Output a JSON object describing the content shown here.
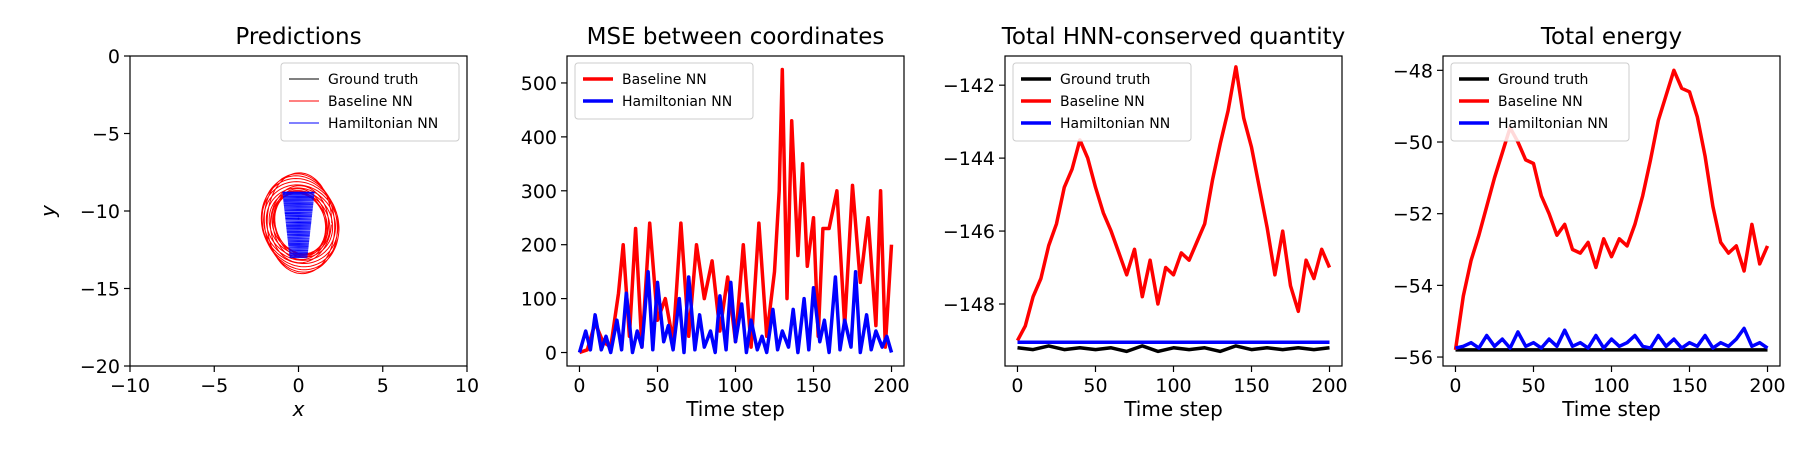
{
  "chart_data": [
    {
      "type": "line",
      "title": "Predictions",
      "xlabel": "x",
      "ylabel": "y",
      "xlim": [
        -10,
        10
      ],
      "ylim": [
        -20,
        0
      ],
      "xticks": [
        -10,
        -5,
        0,
        5,
        10
      ],
      "yticks": [
        0,
        -5,
        -10,
        -15,
        -20
      ],
      "legend": "top-right",
      "grid": false,
      "series": [
        {
          "name": "Ground truth",
          "color": "#000000",
          "style": "thin",
          "kind": "point",
          "x": [
            0.0
          ],
          "y": [
            -10.5
          ]
        },
        {
          "name": "Baseline NN",
          "color": "#ff0000",
          "style": "thin",
          "kind": "orbit",
          "cx": 0.1,
          "cy": -10.8,
          "rx": 2.2,
          "ry": 3.2,
          "xrange": [
            -3.0,
            2.8
          ],
          "yrange": [
            -14.8,
            -7.2
          ]
        },
        {
          "name": "Hamiltonian NN",
          "color": "#0000ff",
          "style": "thin",
          "kind": "band",
          "cx": 0.0,
          "cy": -10.7,
          "xrange": [
            -0.95,
            0.95
          ],
          "yrange": [
            -13.0,
            -8.8
          ]
        }
      ]
    },
    {
      "type": "line",
      "title": "MSE between coordinates",
      "xlabel": "Time step",
      "ylabel": "",
      "xlim": [
        -8,
        208
      ],
      "ylim": [
        -25,
        550
      ],
      "xticks": [
        0,
        50,
        100,
        150,
        200
      ],
      "yticks": [
        0,
        100,
        200,
        300,
        400,
        500
      ],
      "legend": "top-left",
      "grid": false,
      "series": [
        {
          "name": "Baseline NN",
          "color": "#ff0000",
          "x": [
            0,
            5,
            10,
            15,
            20,
            25,
            28,
            32,
            36,
            40,
            45,
            50,
            55,
            60,
            65,
            70,
            75,
            80,
            85,
            90,
            95,
            100,
            105,
            110,
            115,
            120,
            125,
            128,
            130,
            133,
            136,
            140,
            143,
            146,
            150,
            153,
            156,
            160,
            165,
            170,
            175,
            180,
            185,
            190,
            193,
            196,
            200
          ],
          "y": [
            0,
            5,
            55,
            20,
            10,
            110,
            200,
            30,
            230,
            10,
            240,
            60,
            100,
            20,
            240,
            30,
            200,
            100,
            170,
            40,
            140,
            20,
            200,
            10,
            240,
            30,
            150,
            300,
            525,
            100,
            430,
            180,
            350,
            160,
            250,
            30,
            230,
            230,
            300,
            50,
            310,
            130,
            250,
            50,
            300,
            10,
            200
          ]
        },
        {
          "name": "Hamiltonian NN",
          "color": "#0000ff",
          "x": [
            0,
            4,
            7,
            10,
            14,
            17,
            20,
            24,
            27,
            30,
            34,
            37,
            40,
            44,
            47,
            50,
            54,
            57,
            60,
            64,
            67,
            70,
            74,
            77,
            80,
            84,
            87,
            90,
            94,
            97,
            100,
            104,
            107,
            110,
            114,
            117,
            120,
            124,
            127,
            130,
            134,
            137,
            140,
            144,
            147,
            150,
            154,
            157,
            160,
            164,
            167,
            170,
            174,
            177,
            180,
            184,
            187,
            190,
            194,
            197,
            200
          ],
          "y": [
            0,
            40,
            5,
            70,
            5,
            30,
            0,
            60,
            5,
            110,
            0,
            40,
            10,
            150,
            5,
            130,
            20,
            50,
            5,
            100,
            0,
            140,
            5,
            70,
            10,
            40,
            0,
            105,
            5,
            130,
            20,
            90,
            0,
            60,
            5,
            30,
            0,
            80,
            5,
            40,
            10,
            80,
            0,
            100,
            5,
            120,
            20,
            60,
            0,
            140,
            5,
            60,
            10,
            150,
            0,
            70,
            5,
            40,
            10,
            30,
            0
          ]
        }
      ]
    },
    {
      "type": "line",
      "title": "Total HNN-conserved quantity",
      "xlabel": "Time step",
      "ylabel": "",
      "xlim": [
        -8,
        208
      ],
      "ylim": [
        -149.7,
        -141.2
      ],
      "xticks": [
        0,
        50,
        100,
        150,
        200
      ],
      "yticks": [
        -142,
        -144,
        -146,
        -148
      ],
      "legend": "top-left",
      "grid": false,
      "series": [
        {
          "name": "Ground truth",
          "color": "#000000",
          "x": [
            0,
            10,
            20,
            30,
            40,
            50,
            60,
            70,
            80,
            90,
            100,
            110,
            120,
            130,
            140,
            150,
            160,
            170,
            180,
            190,
            200
          ],
          "y": [
            -149.2,
            -149.25,
            -149.15,
            -149.25,
            -149.2,
            -149.25,
            -149.2,
            -149.3,
            -149.15,
            -149.3,
            -149.2,
            -149.25,
            -149.2,
            -149.3,
            -149.15,
            -149.25,
            -149.2,
            -149.25,
            -149.2,
            -149.25,
            -149.2
          ]
        },
        {
          "name": "Baseline NN",
          "color": "#ff0000",
          "x": [
            0,
            5,
            10,
            15,
            20,
            25,
            30,
            35,
            40,
            45,
            50,
            55,
            60,
            65,
            70,
            75,
            80,
            85,
            90,
            95,
            100,
            105,
            110,
            115,
            120,
            125,
            130,
            135,
            140,
            145,
            150,
            155,
            160,
            165,
            170,
            175,
            180,
            185,
            190,
            195,
            200
          ],
          "y": [
            -149.0,
            -148.6,
            -147.8,
            -147.3,
            -146.4,
            -145.8,
            -144.8,
            -144.3,
            -143.5,
            -144.0,
            -144.8,
            -145.5,
            -146.0,
            -146.6,
            -147.2,
            -146.5,
            -147.8,
            -146.8,
            -148.0,
            -147.0,
            -147.2,
            -146.6,
            -146.8,
            -146.3,
            -145.8,
            -144.6,
            -143.6,
            -142.7,
            -141.5,
            -142.9,
            -143.7,
            -144.8,
            -145.9,
            -147.2,
            -146.0,
            -147.5,
            -148.2,
            -146.8,
            -147.3,
            -146.5,
            -147.0
          ]
        },
        {
          "name": "Hamiltonian NN",
          "color": "#0000ff",
          "x": [
            0,
            200
          ],
          "y": [
            -149.05,
            -149.05
          ]
        }
      ]
    },
    {
      "type": "line",
      "title": "Total energy",
      "xlabel": "Time step",
      "ylabel": "",
      "xlim": [
        -8,
        208
      ],
      "ylim": [
        -56.25,
        -47.6
      ],
      "xticks": [
        0,
        50,
        100,
        150,
        200
      ],
      "yticks": [
        -48,
        -50,
        -52,
        -54,
        -56
      ],
      "legend": "top-left",
      "grid": false,
      "series": [
        {
          "name": "Ground truth",
          "color": "#000000",
          "x": [
            0,
            200
          ],
          "y": [
            -55.8,
            -55.8
          ]
        },
        {
          "name": "Baseline NN",
          "color": "#ff0000",
          "x": [
            0,
            5,
            10,
            15,
            20,
            25,
            30,
            35,
            40,
            45,
            50,
            55,
            60,
            65,
            70,
            75,
            80,
            85,
            90,
            95,
            100,
            105,
            110,
            115,
            120,
            125,
            130,
            135,
            140,
            145,
            150,
            155,
            160,
            165,
            170,
            175,
            180,
            185,
            190,
            195,
            200
          ],
          "y": [
            -55.8,
            -54.3,
            -53.3,
            -52.6,
            -51.8,
            -51.0,
            -50.3,
            -49.6,
            -50.0,
            -50.5,
            -50.6,
            -51.5,
            -52.0,
            -52.6,
            -52.3,
            -53.0,
            -53.1,
            -52.8,
            -53.5,
            -52.7,
            -53.2,
            -52.7,
            -52.9,
            -52.3,
            -51.5,
            -50.5,
            -49.4,
            -48.7,
            -48.0,
            -48.5,
            -48.6,
            -49.3,
            -50.4,
            -51.8,
            -52.8,
            -53.1,
            -52.9,
            -53.6,
            -52.3,
            -53.4,
            -52.9
          ]
        },
        {
          "name": "Hamiltonian NN",
          "color": "#0000ff",
          "x": [
            0,
            5,
            10,
            15,
            20,
            25,
            30,
            35,
            40,
            45,
            50,
            55,
            60,
            65,
            70,
            75,
            80,
            85,
            90,
            95,
            100,
            105,
            110,
            115,
            120,
            125,
            130,
            135,
            140,
            145,
            150,
            155,
            160,
            165,
            170,
            175,
            180,
            185,
            190,
            195,
            200
          ],
          "y": [
            -55.75,
            -55.7,
            -55.6,
            -55.75,
            -55.4,
            -55.7,
            -55.5,
            -55.75,
            -55.3,
            -55.7,
            -55.6,
            -55.75,
            -55.5,
            -55.7,
            -55.25,
            -55.7,
            -55.6,
            -55.75,
            -55.4,
            -55.75,
            -55.5,
            -55.7,
            -55.6,
            -55.4,
            -55.7,
            -55.75,
            -55.4,
            -55.7,
            -55.5,
            -55.75,
            -55.6,
            -55.7,
            -55.4,
            -55.75,
            -55.6,
            -55.7,
            -55.5,
            -55.2,
            -55.7,
            -55.6,
            -55.75
          ]
        }
      ]
    }
  ]
}
